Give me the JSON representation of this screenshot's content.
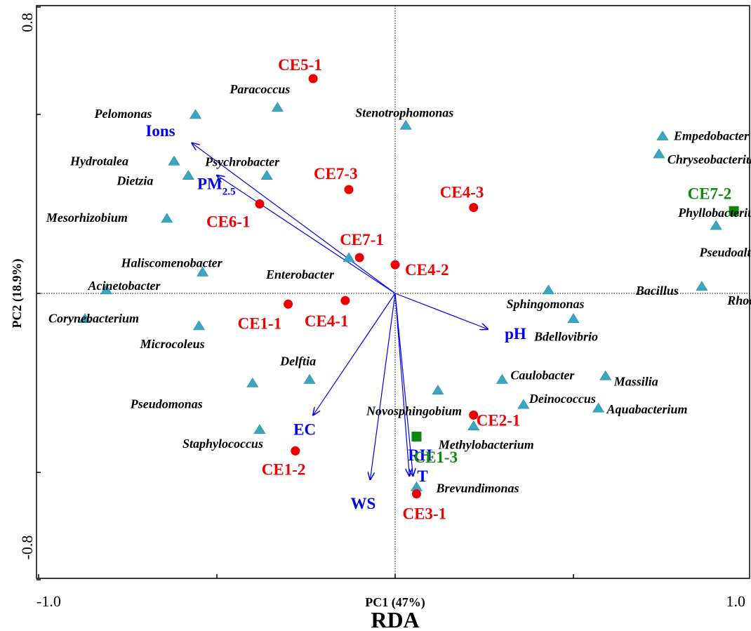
{
  "chart_data": {
    "type": "scatter",
    "title": "RDA",
    "xlabel": "PC1 (47%)",
    "ylabel": "PC2 (18.9%)",
    "xlim": [
      -1.0,
      1.0
    ],
    "ylim": [
      -0.8,
      0.8
    ],
    "x_tick_labels": [
      "-1.0",
      "1.0"
    ],
    "y_tick_labels": [
      "0.8",
      "-0.8"
    ],
    "colors": {
      "species": "#3aa6c1",
      "sample_red": "#ee0000",
      "sample_green": "#0a8a0a",
      "env": "#0000ee"
    },
    "species": [
      {
        "name": "Paracoccus",
        "x": -0.33,
        "y": 0.52
      },
      {
        "name": "Pelomonas",
        "x": -0.56,
        "y": 0.5
      },
      {
        "name": "Stenotrophomonas",
        "x": 0.03,
        "y": 0.47
      },
      {
        "name": "Empedobacter",
        "x": 0.75,
        "y": 0.44
      },
      {
        "name": "Chryseobacterium",
        "x": 0.74,
        "y": 0.39
      },
      {
        "name": "Hydrotalea",
        "x": -0.62,
        "y": 0.37
      },
      {
        "name": "Psychrobacter",
        "x": -0.36,
        "y": 0.33
      },
      {
        "name": "Dietzia",
        "x": -0.58,
        "y": 0.33
      },
      {
        "name": "Phyllobacterium",
        "x": 0.9,
        "y": 0.19
      },
      {
        "name": "Mesorhizobium",
        "x": -0.64,
        "y": 0.21
      },
      {
        "name": "Enterobacter",
        "x": -0.13,
        "y": 0.1
      },
      {
        "name": "Haliscomenobacter",
        "x": -0.54,
        "y": 0.06
      },
      {
        "name": "Pseudoalteromonas",
        "x": 1.07,
        "y": 0.05
      },
      {
        "name": "Bacillus",
        "x": 0.86,
        "y": 0.02
      },
      {
        "name": "Rhodococcus",
        "x": 1.03,
        "y": 0.02
      },
      {
        "name": "Acinetobacter",
        "x": -0.81,
        "y": 0.01
      },
      {
        "name": "Sphingomonas",
        "x": 0.43,
        "y": 0.01
      },
      {
        "name": "Corynebacterium",
        "x": -0.87,
        "y": -0.07
      },
      {
        "name": "Bdellovibrio",
        "x": 0.5,
        "y": -0.07
      },
      {
        "name": "Microcoleus",
        "x": -0.55,
        "y": -0.09
      },
      {
        "name": "Delftia",
        "x": -0.24,
        "y": -0.24
      },
      {
        "name": "Pseudomonas",
        "x": -0.4,
        "y": -0.25
      },
      {
        "name": "Caulobacter",
        "x": 0.3,
        "y": -0.24
      },
      {
        "name": "Massilia",
        "x": 0.59,
        "y": -0.23
      },
      {
        "name": "Novosphingobium",
        "x": 0.12,
        "y": -0.27
      },
      {
        "name": "Deinococcus",
        "x": 0.36,
        "y": -0.31
      },
      {
        "name": "Aquabacterium",
        "x": 0.57,
        "y": -0.32
      },
      {
        "name": "Staphylococcus",
        "x": -0.38,
        "y": -0.38
      },
      {
        "name": "Methylobacterium",
        "x": 0.22,
        "y": -0.37
      },
      {
        "name": "Brevundimonas",
        "x": 0.06,
        "y": -0.54
      }
    ],
    "samples": [
      {
        "name": "CE5-1",
        "x": -0.23,
        "y": 0.6,
        "group": "red"
      },
      {
        "name": "CE7-3",
        "x": -0.13,
        "y": 0.29,
        "group": "red"
      },
      {
        "name": "CE4-3",
        "x": 0.22,
        "y": 0.24,
        "group": "red"
      },
      {
        "name": "CE6-1",
        "x": -0.38,
        "y": 0.25,
        "group": "red"
      },
      {
        "name": "CE7-1",
        "x": -0.1,
        "y": 0.1,
        "group": "red"
      },
      {
        "name": "CE4-2",
        "x": 0.0,
        "y": 0.08,
        "group": "red"
      },
      {
        "name": "CE1-1",
        "x": -0.3,
        "y": -0.03,
        "group": "red"
      },
      {
        "name": "CE4-1",
        "x": -0.14,
        "y": -0.02,
        "group": "red"
      },
      {
        "name": "CE2-1",
        "x": 0.22,
        "y": -0.34,
        "group": "red"
      },
      {
        "name": "CE1-2",
        "x": -0.28,
        "y": -0.44,
        "group": "red"
      },
      {
        "name": "CE3-1",
        "x": 0.06,
        "y": -0.56,
        "group": "red"
      },
      {
        "name": "CE7-2",
        "x": 0.95,
        "y": 0.23,
        "group": "green"
      },
      {
        "name": "CE1-3",
        "x": 0.06,
        "y": -0.4,
        "group": "green"
      }
    ],
    "env_factors": [
      {
        "name": "Ions",
        "x": -0.57,
        "y": 0.42
      },
      {
        "name": "PM",
        "sub": "2.5",
        "x": -0.5,
        "y": 0.33
      },
      {
        "name": "pH",
        "x": 0.26,
        "y": -0.1
      },
      {
        "name": "RH",
        "x": 0.04,
        "y": -0.51
      },
      {
        "name": "EC",
        "x": -0.23,
        "y": -0.34
      },
      {
        "name": "WS",
        "x": -0.07,
        "y": -0.52
      },
      {
        "name": "T",
        "x": 0.05,
        "y": -0.51
      }
    ]
  }
}
